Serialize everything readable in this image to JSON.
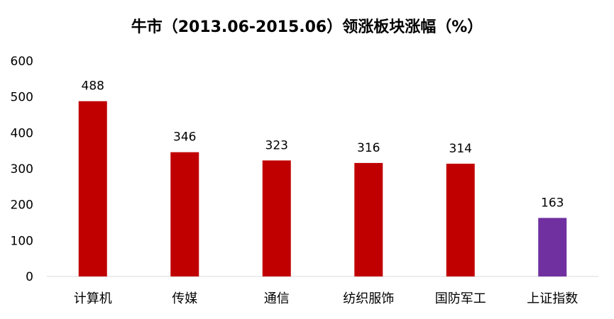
{
  "chart_data": {
    "type": "bar",
    "title": "牛市（2013.06-2015.06）领涨板块涨幅（%）",
    "categories": [
      "计算机",
      "传媒",
      "通信",
      "纺织服饰",
      "国防军工",
      "上证指数"
    ],
    "values": [
      488,
      346,
      323,
      316,
      314,
      163
    ],
    "colors": [
      "#C00000",
      "#C00000",
      "#C00000",
      "#C00000",
      "#C00000",
      "#7030A0"
    ],
    "ylim": [
      0,
      600
    ],
    "yticks": [
      0,
      100,
      200,
      300,
      400,
      500,
      600
    ],
    "grid": false,
    "legend": "none",
    "data_labels": [
      "488",
      "346",
      "323",
      "316",
      "314",
      "163"
    ]
  }
}
